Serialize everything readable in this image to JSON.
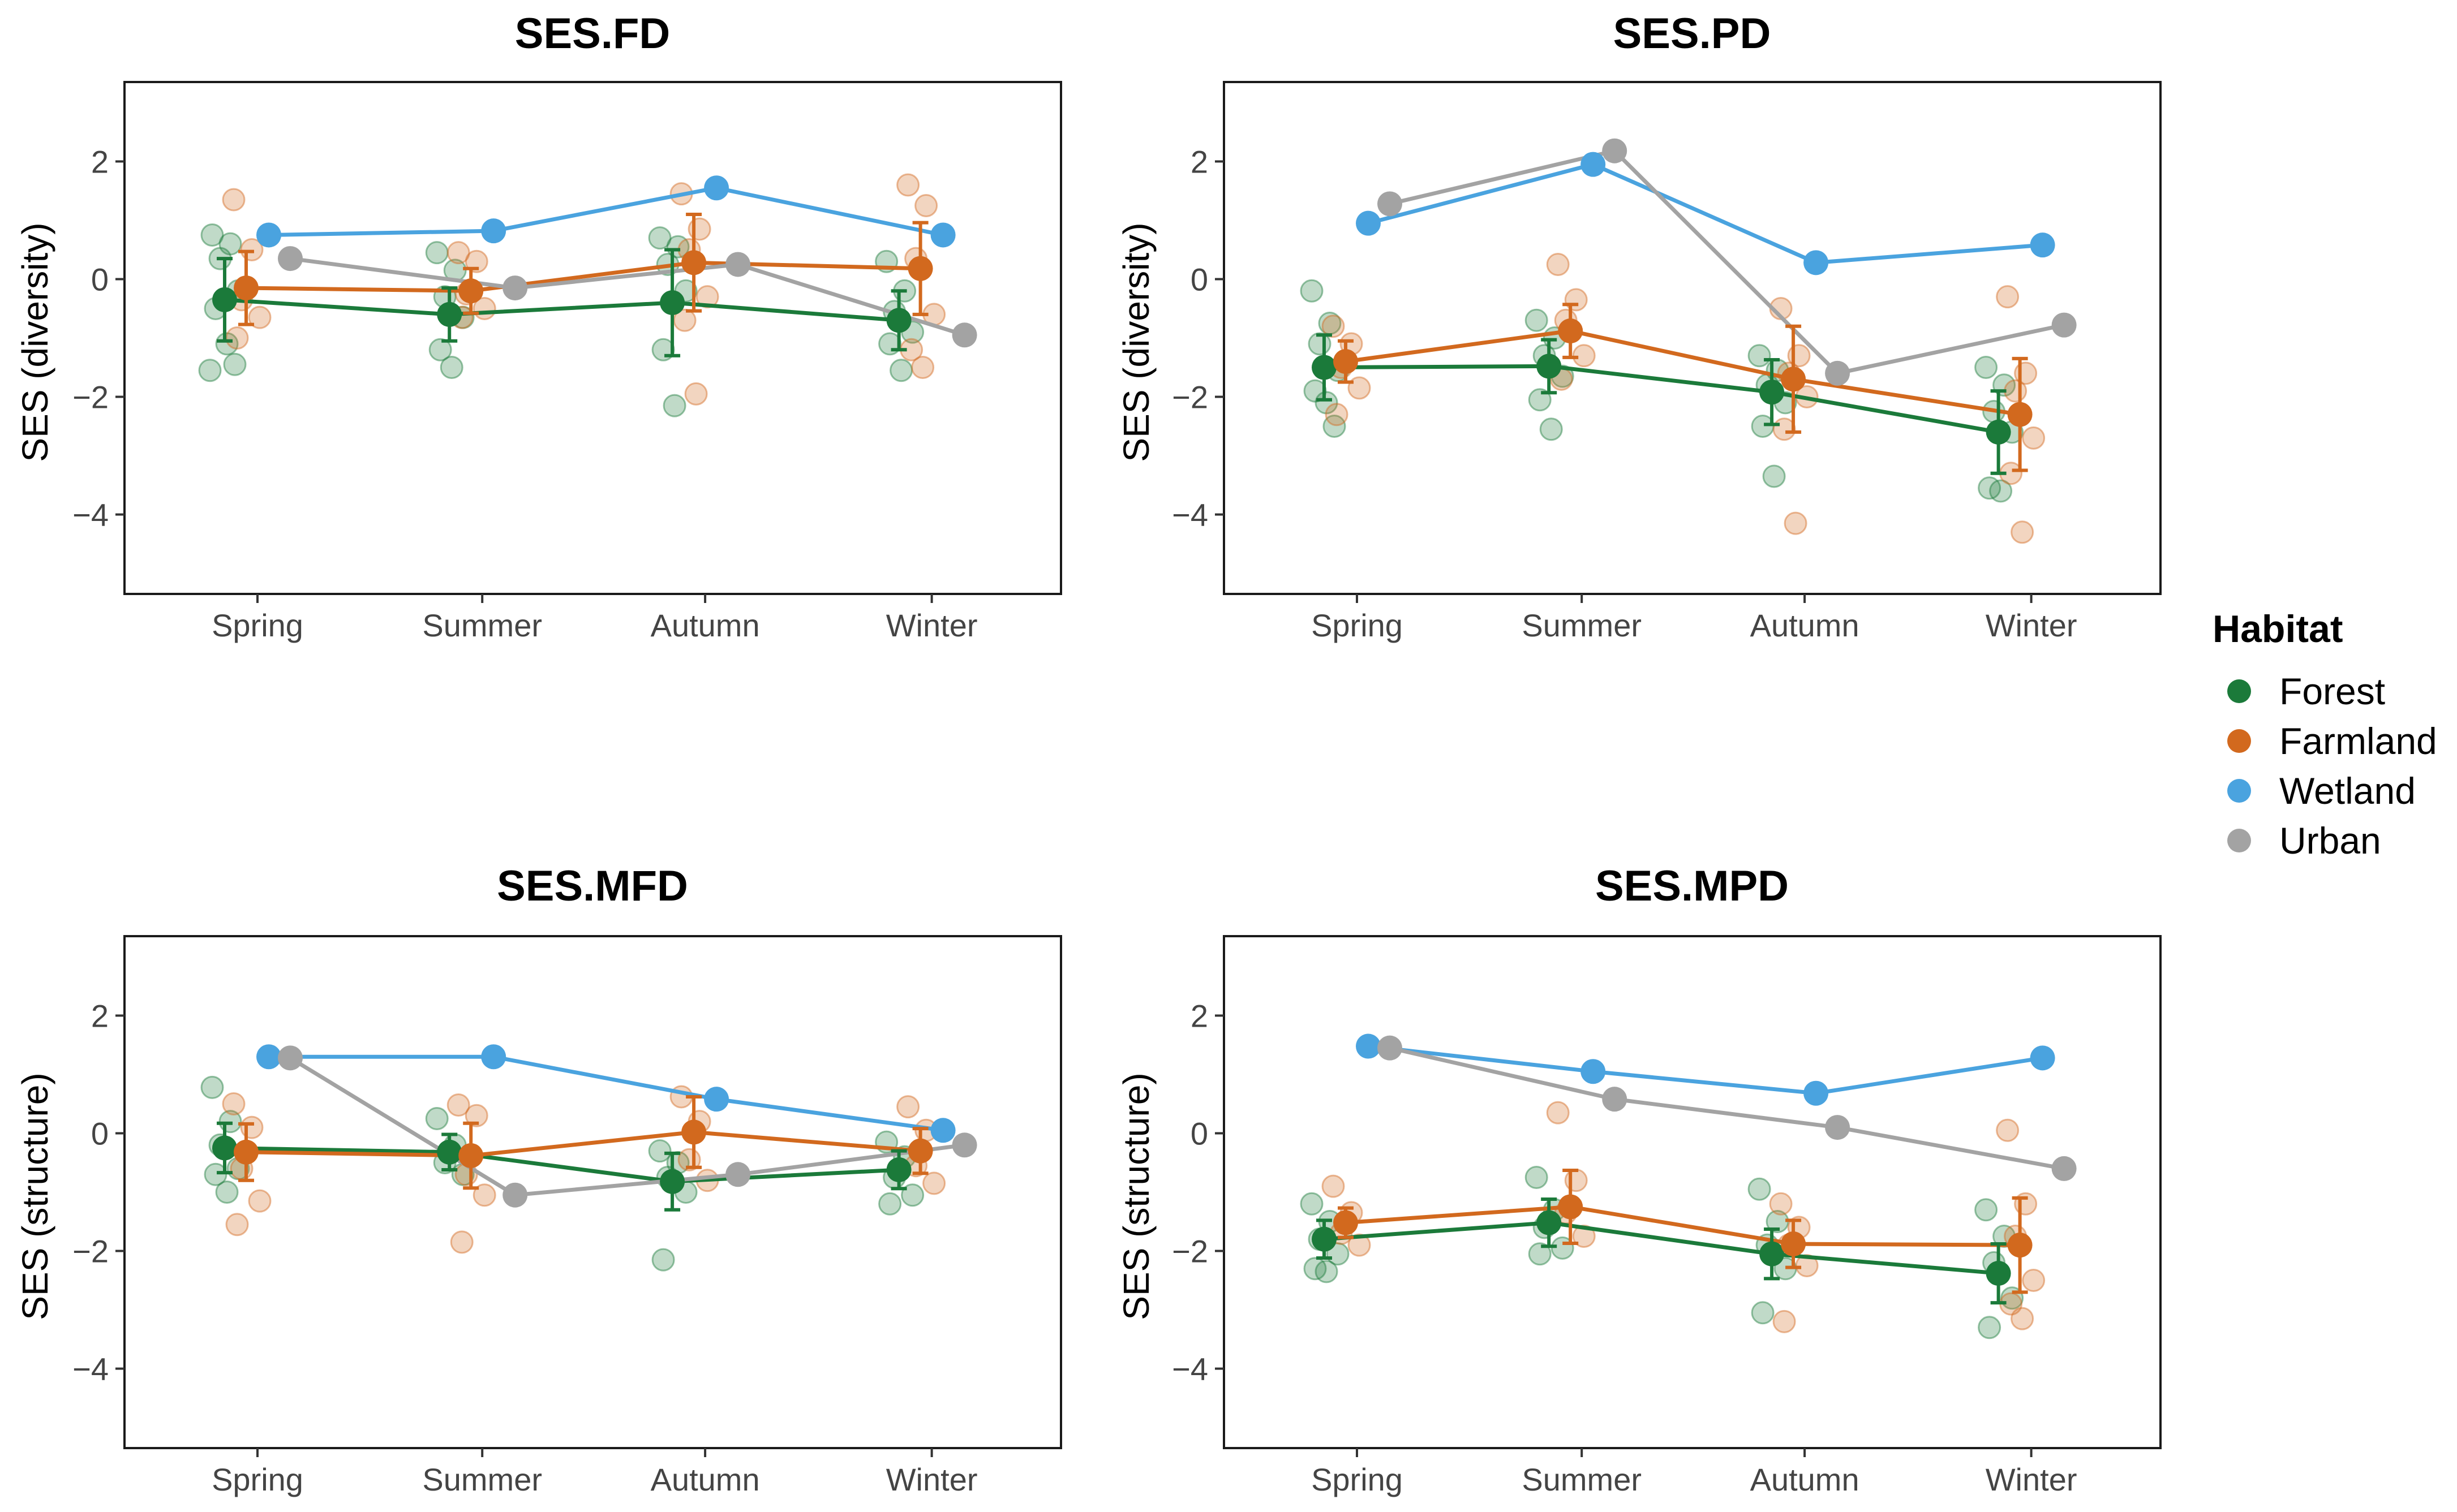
{
  "legend": {
    "title": "Habitat",
    "items": [
      {
        "name": "Forest",
        "color": "#1b7a3a"
      },
      {
        "name": "Farmland",
        "color": "#d2691e"
      },
      {
        "name": "Wetland",
        "color": "#4aa3df"
      },
      {
        "name": "Urban",
        "color": "#a3a3a3"
      }
    ]
  },
  "chart_data": [
    {
      "type": "line",
      "title": "SES.FD",
      "xlabel": "",
      "ylabel": "SES (diversity)",
      "categories": [
        "Spring",
        "Summer",
        "Autumn",
        "Winter"
      ],
      "ylim": [
        -5.35,
        3.35
      ],
      "yticks": [
        -4,
        -2,
        0,
        2
      ],
      "ytick_labels": [
        "−4",
        "−2",
        "0",
        "2"
      ],
      "series": [
        {
          "name": "Forest",
          "values": [
            -0.35,
            -0.6,
            -0.4,
            -0.7
          ],
          "errors": [
            0.7,
            0.45,
            0.9,
            0.5
          ],
          "raw": [
            [
              0.75,
              0.6,
              0.35,
              -0.2,
              -0.5,
              -1.1,
              -1.45,
              -1.55
            ],
            [
              0.45,
              0.15,
              -0.3,
              -0.65,
              -1.2,
              -1.5
            ],
            [
              0.7,
              0.55,
              0.25,
              -0.2,
              -1.2,
              -2.15
            ],
            [
              0.3,
              -0.2,
              -0.55,
              -0.9,
              -1.1,
              -1.55
            ]
          ]
        },
        {
          "name": "Farmland",
          "values": [
            -0.15,
            -0.2,
            0.28,
            0.18
          ],
          "errors": [
            0.62,
            0.38,
            0.82,
            0.78
          ],
          "raw": [
            [
              1.35,
              0.5,
              -0.35,
              -0.65,
              -1.0
            ],
            [
              0.45,
              0.3,
              -0.25,
              -0.5,
              -0.65
            ],
            [
              1.45,
              0.85,
              0.5,
              -0.3,
              -0.7,
              -1.95
            ],
            [
              1.6,
              1.25,
              0.35,
              -0.6,
              -1.2,
              -1.5
            ]
          ]
        },
        {
          "name": "Wetland",
          "values": [
            0.75,
            0.82,
            1.55,
            0.75
          ],
          "errors": [
            0,
            0,
            0,
            0
          ],
          "raw": [
            [],
            [],
            [],
            []
          ]
        },
        {
          "name": "Urban",
          "values": [
            0.35,
            -0.15,
            0.25,
            -0.95
          ],
          "errors": [
            0,
            0,
            0,
            0
          ],
          "raw": [
            [],
            [],
            [],
            []
          ]
        }
      ]
    },
    {
      "type": "line",
      "title": "SES.PD",
      "xlabel": "",
      "ylabel": "SES (diversity)",
      "categories": [
        "Spring",
        "Summer",
        "Autumn",
        "Winter"
      ],
      "ylim": [
        -5.35,
        3.35
      ],
      "yticks": [
        -4,
        -2,
        0,
        2
      ],
      "ytick_labels": [
        "−4",
        "−2",
        "0",
        "2"
      ],
      "series": [
        {
          "name": "Forest",
          "values": [
            -1.5,
            -1.48,
            -1.92,
            -2.6
          ],
          "errors": [
            0.55,
            0.45,
            0.55,
            0.7
          ],
          "raw": [
            [
              -0.2,
              -0.75,
              -1.1,
              -1.55,
              -1.9,
              -2.1,
              -2.5
            ],
            [
              -0.7,
              -1.0,
              -1.3,
              -1.65,
              -2.05,
              -2.55
            ],
            [
              -1.3,
              -1.55,
              -1.8,
              -2.1,
              -2.5,
              -3.35
            ],
            [
              -1.5,
              -1.8,
              -2.25,
              -2.6,
              -3.55,
              -3.6
            ]
          ]
        },
        {
          "name": "Farmland",
          "values": [
            -1.4,
            -0.88,
            -1.7,
            -2.3
          ],
          "errors": [
            0.35,
            0.45,
            0.9,
            0.95
          ],
          "raw": [
            [
              -0.8,
              -1.1,
              -1.5,
              -1.85,
              -2.3
            ],
            [
              0.25,
              -0.35,
              -0.7,
              -1.3,
              -1.7
            ],
            [
              -0.5,
              -1.3,
              -1.6,
              -2.0,
              -2.55,
              -4.15
            ],
            [
              -0.3,
              -1.6,
              -1.9,
              -2.7,
              -3.3,
              -4.3
            ]
          ]
        },
        {
          "name": "Wetland",
          "values": [
            0.95,
            1.95,
            0.28,
            0.58
          ],
          "errors": [
            0,
            0,
            0,
            0
          ],
          "raw": [
            [],
            [],
            [],
            []
          ]
        },
        {
          "name": "Urban",
          "values": [
            1.28,
            2.18,
            -1.6,
            -0.78
          ],
          "errors": [
            0,
            0,
            0,
            0
          ],
          "raw": [
            [],
            [],
            [],
            []
          ]
        }
      ]
    },
    {
      "type": "line",
      "title": "SES.MFD",
      "xlabel": "",
      "ylabel": "SES (structure)",
      "categories": [
        "Spring",
        "Summer",
        "Autumn",
        "Winter"
      ],
      "ylim": [
        -5.35,
        3.35
      ],
      "yticks": [
        -4,
        -2,
        0,
        2
      ],
      "ytick_labels": [
        "−4",
        "−2",
        "0",
        "2"
      ],
      "series": [
        {
          "name": "Forest",
          "values": [
            -0.25,
            -0.32,
            -0.82,
            -0.62
          ],
          "errors": [
            0.42,
            0.3,
            0.48,
            0.32
          ],
          "raw": [
            [
              0.78,
              0.2,
              -0.2,
              -0.6,
              -0.7,
              -1.0
            ],
            [
              0.25,
              -0.2,
              -0.5,
              -0.7
            ],
            [
              -0.3,
              -0.5,
              -0.75,
              -1.0,
              -2.15
            ],
            [
              -0.15,
              -0.4,
              -0.75,
              -1.05,
              -1.2
            ]
          ]
        },
        {
          "name": "Farmland",
          "values": [
            -0.32,
            -0.38,
            0.02,
            -0.3
          ],
          "errors": [
            0.48,
            0.55,
            0.6,
            0.38
          ],
          "raw": [
            [
              0.5,
              0.1,
              -0.6,
              -1.15,
              -1.55
            ],
            [
              0.48,
              0.3,
              -0.7,
              -1.05,
              -1.85
            ],
            [
              0.62,
              0.2,
              -0.45,
              -0.8
            ],
            [
              0.45,
              0.05,
              -0.55,
              -0.85
            ]
          ]
        },
        {
          "name": "Wetland",
          "values": [
            1.3,
            1.3,
            0.58,
            0.05
          ],
          "errors": [
            0,
            0,
            0,
            0
          ],
          "raw": [
            [],
            [],
            [],
            []
          ]
        },
        {
          "name": "Urban",
          "values": [
            1.28,
            -1.05,
            -0.7,
            -0.2
          ],
          "errors": [
            0,
            0,
            0,
            0
          ],
          "raw": [
            [],
            [],
            [],
            []
          ]
        }
      ]
    },
    {
      "type": "line",
      "title": "SES.MPD",
      "xlabel": "",
      "ylabel": "SES (structure)",
      "categories": [
        "Spring",
        "Summer",
        "Autumn",
        "Winter"
      ],
      "ylim": [
        -5.35,
        3.35
      ],
      "yticks": [
        -4,
        -2,
        0,
        2
      ],
      "ytick_labels": [
        "−4",
        "−2",
        "0",
        "2"
      ],
      "series": [
        {
          "name": "Forest",
          "values": [
            -1.8,
            -1.52,
            -2.05,
            -2.38
          ],
          "errors": [
            0.32,
            0.4,
            0.42,
            0.5
          ],
          "raw": [
            [
              -1.2,
              -1.5,
              -1.8,
              -2.05,
              -2.3,
              -2.35
            ],
            [
              -0.75,
              -1.3,
              -1.6,
              -1.95,
              -2.05
            ],
            [
              -0.95,
              -1.5,
              -1.9,
              -2.3,
              -3.05
            ],
            [
              -1.3,
              -1.75,
              -2.2,
              -2.8,
              -3.3
            ]
          ]
        },
        {
          "name": "Farmland",
          "values": [
            -1.52,
            -1.25,
            -1.88,
            -1.9
          ],
          "errors": [
            0.25,
            0.62,
            0.4,
            0.8
          ],
          "raw": [
            [
              -0.9,
              -1.35,
              -1.7,
              -1.9
            ],
            [
              0.35,
              -0.8,
              -1.35,
              -1.75
            ],
            [
              -1.2,
              -1.6,
              -1.9,
              -2.25,
              -3.2
            ],
            [
              0.05,
              -1.2,
              -1.75,
              -2.5,
              -2.9,
              -3.15
            ]
          ]
        },
        {
          "name": "Wetland",
          "values": [
            1.48,
            1.05,
            0.68,
            1.28
          ],
          "errors": [
            0,
            0,
            0,
            0
          ],
          "raw": [
            [],
            [],
            [],
            []
          ]
        },
        {
          "name": "Urban",
          "values": [
            1.45,
            0.58,
            0.1,
            -0.6
          ],
          "errors": [
            0,
            0,
            0,
            0
          ],
          "raw": [
            [],
            [],
            [],
            []
          ]
        }
      ]
    }
  ]
}
